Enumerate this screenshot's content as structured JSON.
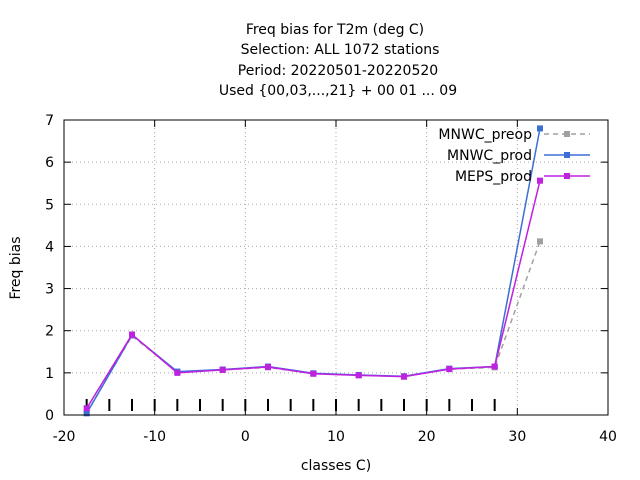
{
  "chart_data": {
    "type": "line",
    "title_lines": [
      "Freq bias  for T2m (deg C)",
      "Selection: ALL    1072 stations",
      "Period: 20220501-20220520",
      "Used {00,03,...,21} + 00 01 ... 09"
    ],
    "xlabel": "classes C)",
    "ylabel": "Freq bias",
    "xlim": [
      -20,
      40
    ],
    "ylim": [
      0,
      7
    ],
    "x_ticks": [
      -20,
      -10,
      0,
      10,
      20,
      30,
      40
    ],
    "y_ticks": [
      0,
      1,
      2,
      3,
      4,
      5,
      6,
      7
    ],
    "grid": true,
    "legend_position": "top-right",
    "class_markers": [
      -17.5,
      -15,
      -12.5,
      -10,
      -7.5,
      -5,
      -2.5,
      0,
      2.5,
      5,
      7.5,
      10,
      12.5,
      15,
      17.5,
      20,
      22.5,
      25,
      27.5
    ],
    "x": [
      -17.5,
      -12.5,
      -7.5,
      -2.5,
      2.5,
      7.5,
      12.5,
      17.5,
      22.5,
      27.5,
      32.5
    ],
    "series": [
      {
        "name": "MNWC_preop",
        "color": "#a0a0a0",
        "dash": true,
        "values": [
          0.05,
          1.88,
          1.02,
          1.07,
          1.13,
          0.98,
          0.95,
          0.91,
          1.09,
          1.13,
          4.12
        ]
      },
      {
        "name": "MNWC_prod",
        "color": "#3b6fd6",
        "dash": false,
        "values": [
          0.04,
          1.9,
          1.03,
          1.08,
          1.15,
          0.99,
          0.95,
          0.92,
          1.1,
          1.15,
          6.8
        ]
      },
      {
        "name": "MEPS_prod",
        "color": "#c020e0",
        "dash": false,
        "values": [
          0.16,
          1.91,
          1.0,
          1.07,
          1.14,
          0.98,
          0.94,
          0.91,
          1.09,
          1.15,
          5.56
        ]
      }
    ]
  }
}
